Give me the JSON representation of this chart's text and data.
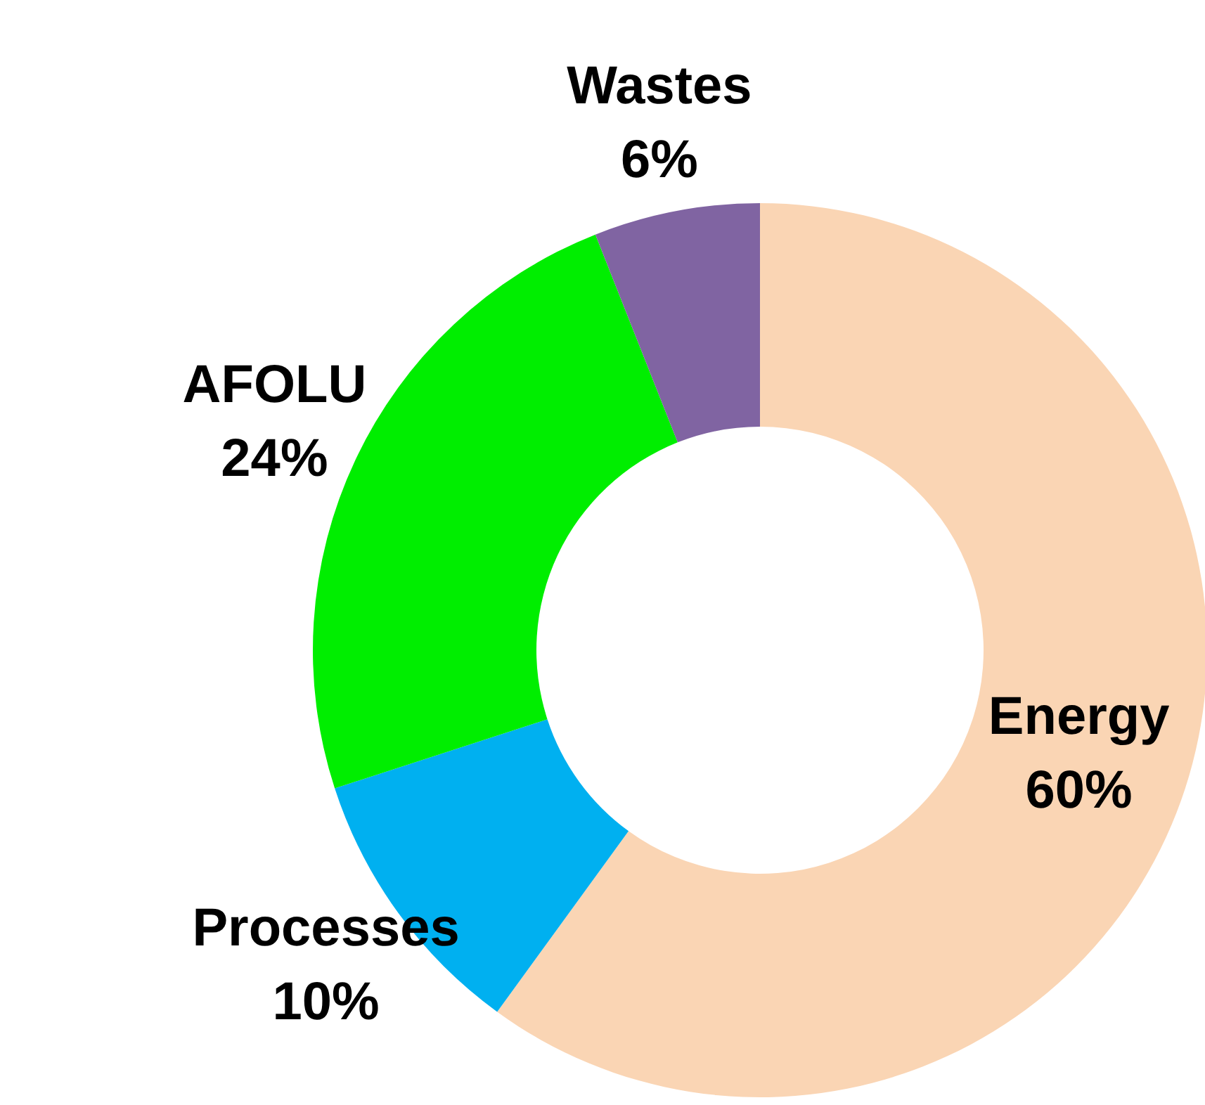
{
  "chart_data": {
    "type": "donut",
    "categories": [
      "Energy",
      "Processes",
      "AFOLU",
      "Wastes"
    ],
    "values": [
      60,
      10,
      24,
      6
    ],
    "value_labels": [
      "60%",
      "10%",
      "24%",
      "6%"
    ],
    "colors": [
      "#fad5b4",
      "#00b0f0",
      "#00ee00",
      "#8064a2"
    ]
  }
}
